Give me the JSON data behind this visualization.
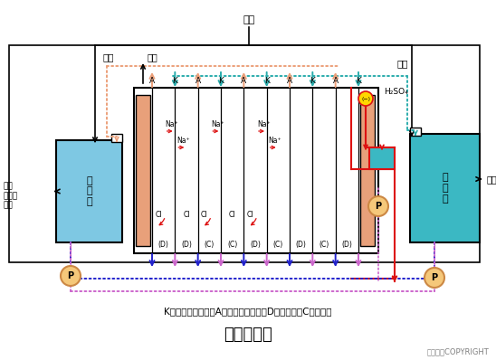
{
  "title": "电渗析装置",
  "subtitle": "K－阳离子交换膜；A－阴离子交换膜；D－淡水室；C－浓水室",
  "copyright": "东方仿真COPYRIGHT",
  "bg_color": "#ffffff",
  "light_blue": "#7EC8E3",
  "dark_blue": "#3BB8C3",
  "electrode_orange": "#E8A07A",
  "teal": "#2AACAC",
  "orange_flow": "#ECA07A",
  "blue_flow": "#2222CC",
  "purple_flow": "#CC66CC",
  "red_col": "#DD1111",
  "pump_fill": "#F5C87A",
  "pump_edge": "#CC8844",
  "gold": "#FFD700",
  "yuan_shui": "原水",
  "pai_chu": "排出",
  "dan_shui_top": "淡水",
  "nong_shui_top": "浓水",
  "dan_shui_chi": "淡\n水\n池",
  "nong_shui_chi": "浓\n水\n池",
  "dan_shui_left": "淡水\n（生产\n水）",
  "nong_shui_right": "浓水",
  "h2so4": "H₂SO₄",
  "neg": "(−)",
  "pump_label": "P",
  "top_labels": [
    "A",
    "K",
    "A",
    "K",
    "A",
    "K",
    "A",
    "K",
    "A",
    "K"
  ],
  "chamber_labels": [
    "(D)",
    "(D)",
    "(C)",
    "(C)",
    "(D)",
    "(C)",
    "(D)",
    "(C)",
    "(D)"
  ]
}
